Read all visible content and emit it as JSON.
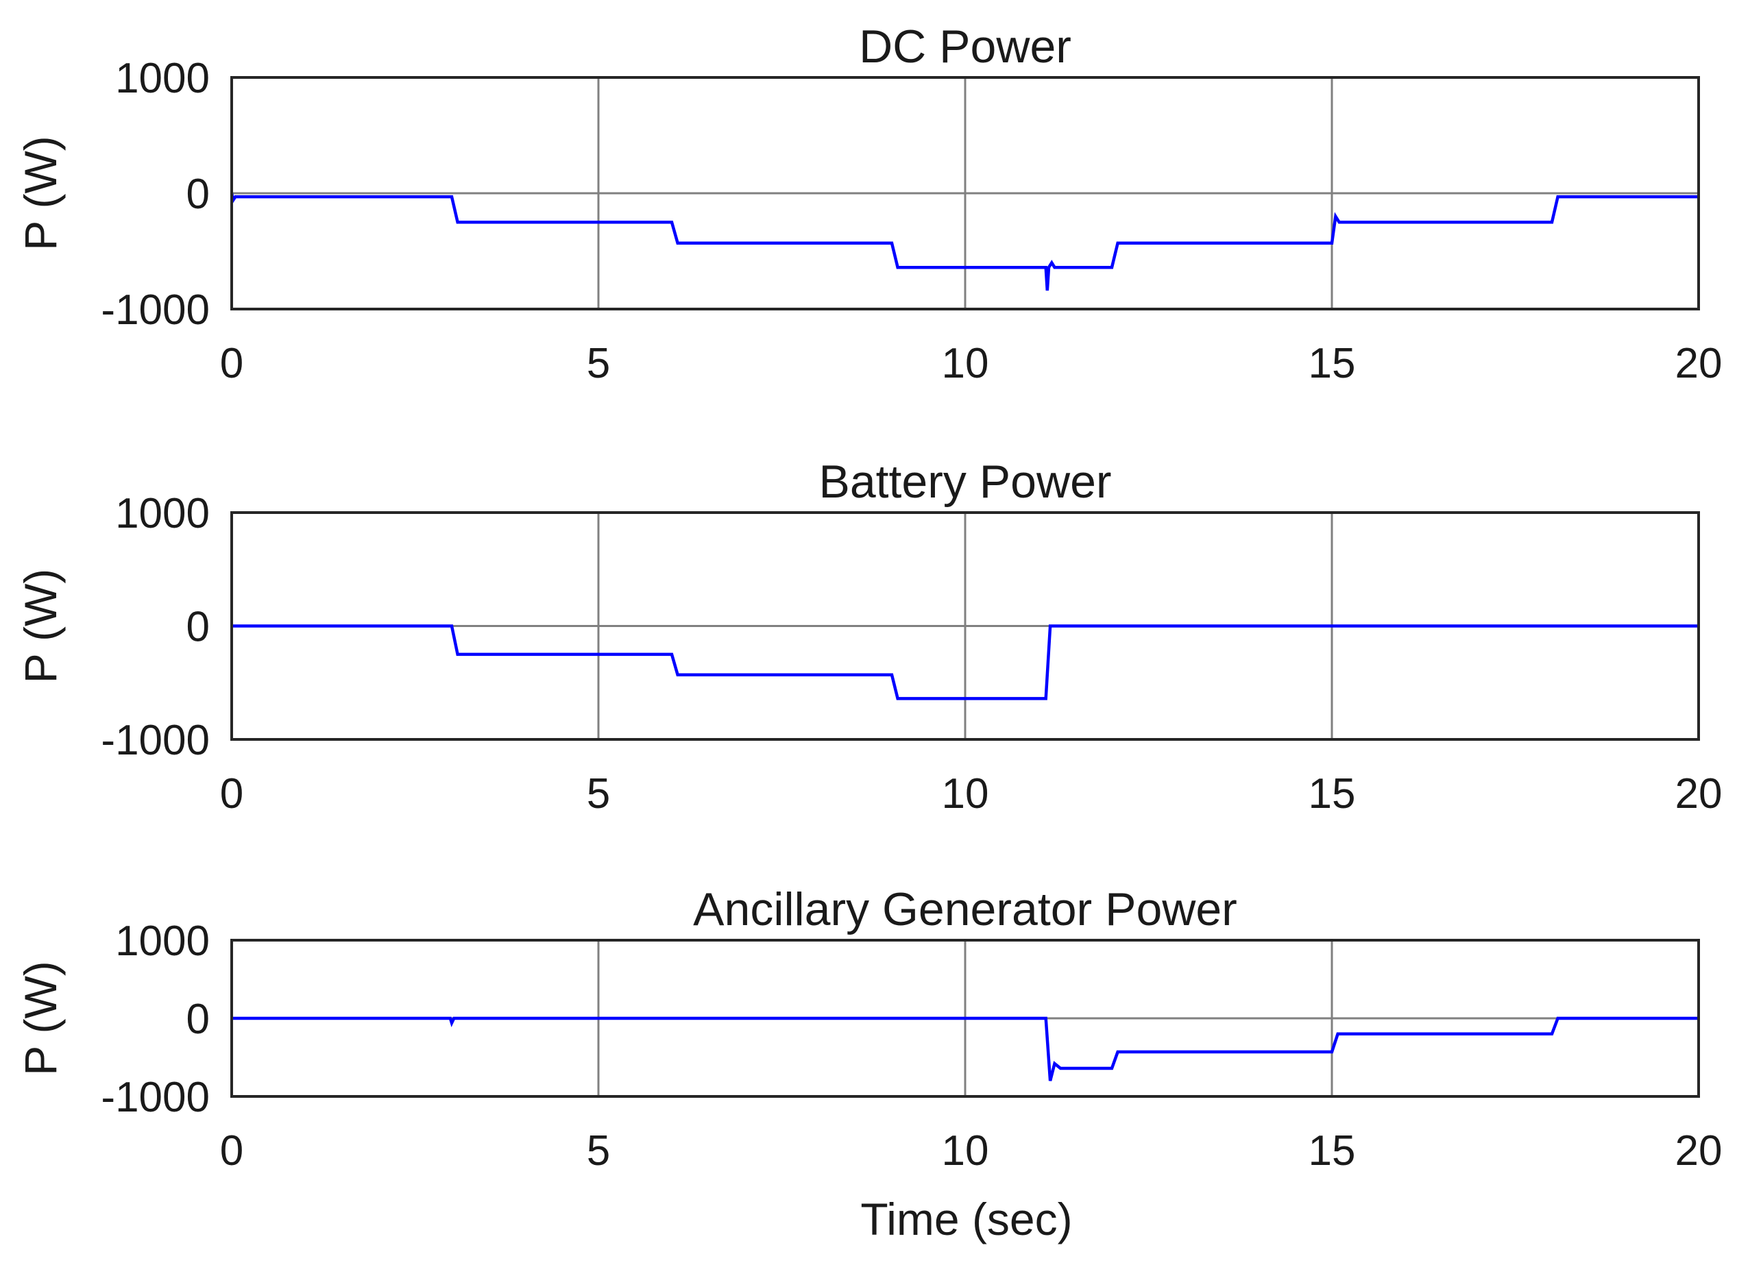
{
  "figure": {
    "xlabel": "Time (sec)"
  },
  "chart_data": [
    {
      "type": "line",
      "title": "DC Power",
      "xlabel": "",
      "ylabel": "P (W)",
      "xlim": [
        0,
        20
      ],
      "ylim": [
        -1000,
        1000
      ],
      "xticks": [
        "0",
        "5",
        "10",
        "15",
        "20"
      ],
      "yticks": [
        "1000",
        "0",
        "-1000"
      ],
      "grid": true,
      "color": "#0000ff",
      "series": [
        {
          "name": "DC Power",
          "x": [
            0,
            0.02,
            0.05,
            3.0,
            3.08,
            6.0,
            6.08,
            9.0,
            9.08,
            11.1,
            11.12,
            11.14,
            11.18,
            11.22,
            11.3,
            12.0,
            12.08,
            15.0,
            15.05,
            15.1,
            18.0,
            18.08,
            20.0
          ],
          "y": [
            0,
            -60,
            -30,
            -30,
            -250,
            -250,
            -430,
            -430,
            -640,
            -640,
            -840,
            -640,
            -600,
            -640,
            -640,
            -640,
            -430,
            -430,
            -200,
            -250,
            -250,
            -30,
            -30
          ]
        }
      ]
    },
    {
      "type": "line",
      "title": "Battery Power",
      "xlabel": "",
      "ylabel": "P (W)",
      "xlim": [
        0,
        20
      ],
      "ylim": [
        -1000,
        1000
      ],
      "xticks": [
        "0",
        "5",
        "10",
        "15",
        "20"
      ],
      "yticks": [
        "1000",
        "0",
        "-1000"
      ],
      "grid": true,
      "color": "#0000ff",
      "series": [
        {
          "name": "Battery Power",
          "x": [
            0,
            3.0,
            3.08,
            6.0,
            6.08,
            9.0,
            9.08,
            11.1,
            11.16,
            20.0
          ],
          "y": [
            0,
            0,
            -250,
            -250,
            -430,
            -430,
            -640,
            -640,
            0,
            0
          ]
        }
      ]
    },
    {
      "type": "line",
      "title": "Ancillary Generator Power",
      "xlabel": "Time (sec)",
      "ylabel": "P (W)",
      "xlim": [
        0,
        20
      ],
      "ylim": [
        -1000,
        1000
      ],
      "xticks": [
        "0",
        "5",
        "10",
        "15",
        "20"
      ],
      "yticks": [
        "1000",
        "0",
        "-1000"
      ],
      "grid": true,
      "color": "#0000ff",
      "series": [
        {
          "name": "Ancillary Generator Power",
          "x": [
            0,
            2.98,
            3.0,
            3.03,
            11.1,
            11.16,
            11.22,
            11.3,
            12.0,
            12.08,
            15.0,
            15.08,
            18.0,
            18.08,
            20.0
          ],
          "y": [
            0,
            0,
            -60,
            0,
            0,
            -800,
            -580,
            -640,
            -640,
            -430,
            -430,
            -200,
            -200,
            0,
            0
          ]
        }
      ]
    }
  ]
}
